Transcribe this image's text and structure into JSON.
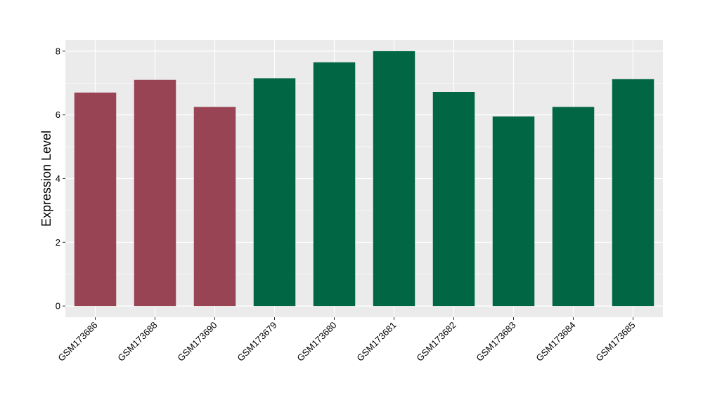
{
  "chart_data": {
    "type": "bar",
    "categories": [
      "GSM173686",
      "GSM173688",
      "GSM173690",
      "GSM173679",
      "GSM173680",
      "GSM173681",
      "GSM173682",
      "GSM173683",
      "GSM173684",
      "GSM173685"
    ],
    "values": [
      6.7,
      7.1,
      6.25,
      7.15,
      7.65,
      8.0,
      6.72,
      5.95,
      6.25,
      7.12
    ],
    "bar_colors": [
      "#994455",
      "#994455",
      "#994455",
      "#006644",
      "#006644",
      "#006644",
      "#006644",
      "#006644",
      "#006644",
      "#006644"
    ],
    "ylabel": "Expression Level",
    "xlabel": "",
    "ylim": [
      -0.35,
      8.35
    ],
    "yticks": [
      0,
      2,
      4,
      6,
      8
    ],
    "grid": true,
    "panel_background": "#ebebeb",
    "grid_color": "#ffffff"
  }
}
